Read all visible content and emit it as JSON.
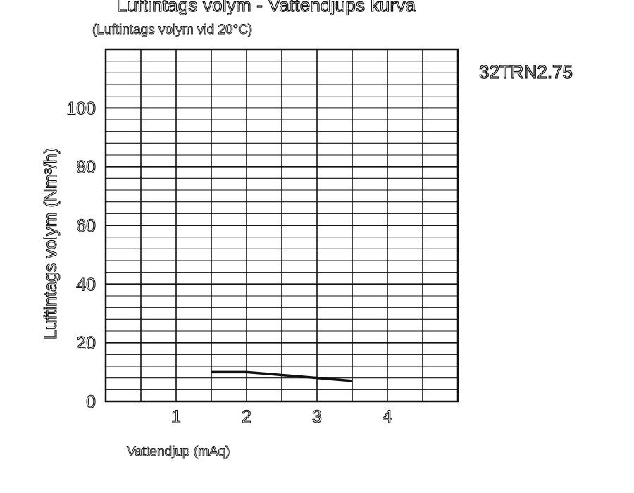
{
  "chart_data": {
    "type": "line",
    "title": "Luftintags volym - Vattendjups kurva",
    "subtitle": "(Luftintags volym vid 20°C)",
    "xlabel": "Vattendjup (mAq)",
    "ylabel": "Luftintags volym (Nm³/h)",
    "model_label": "32TRN2.75",
    "xlim": [
      0,
      5
    ],
    "ylim": [
      0,
      120
    ],
    "x_ticks": [
      1,
      2,
      3,
      4
    ],
    "y_ticks": [
      0,
      20,
      40,
      60,
      80,
      100
    ],
    "grid": true,
    "series": [
      {
        "name": "32TRN2.75",
        "x": [
          1.5,
          2.0,
          2.5,
          3.0,
          3.5
        ],
        "y": [
          10,
          10,
          9,
          8,
          7
        ]
      }
    ]
  }
}
